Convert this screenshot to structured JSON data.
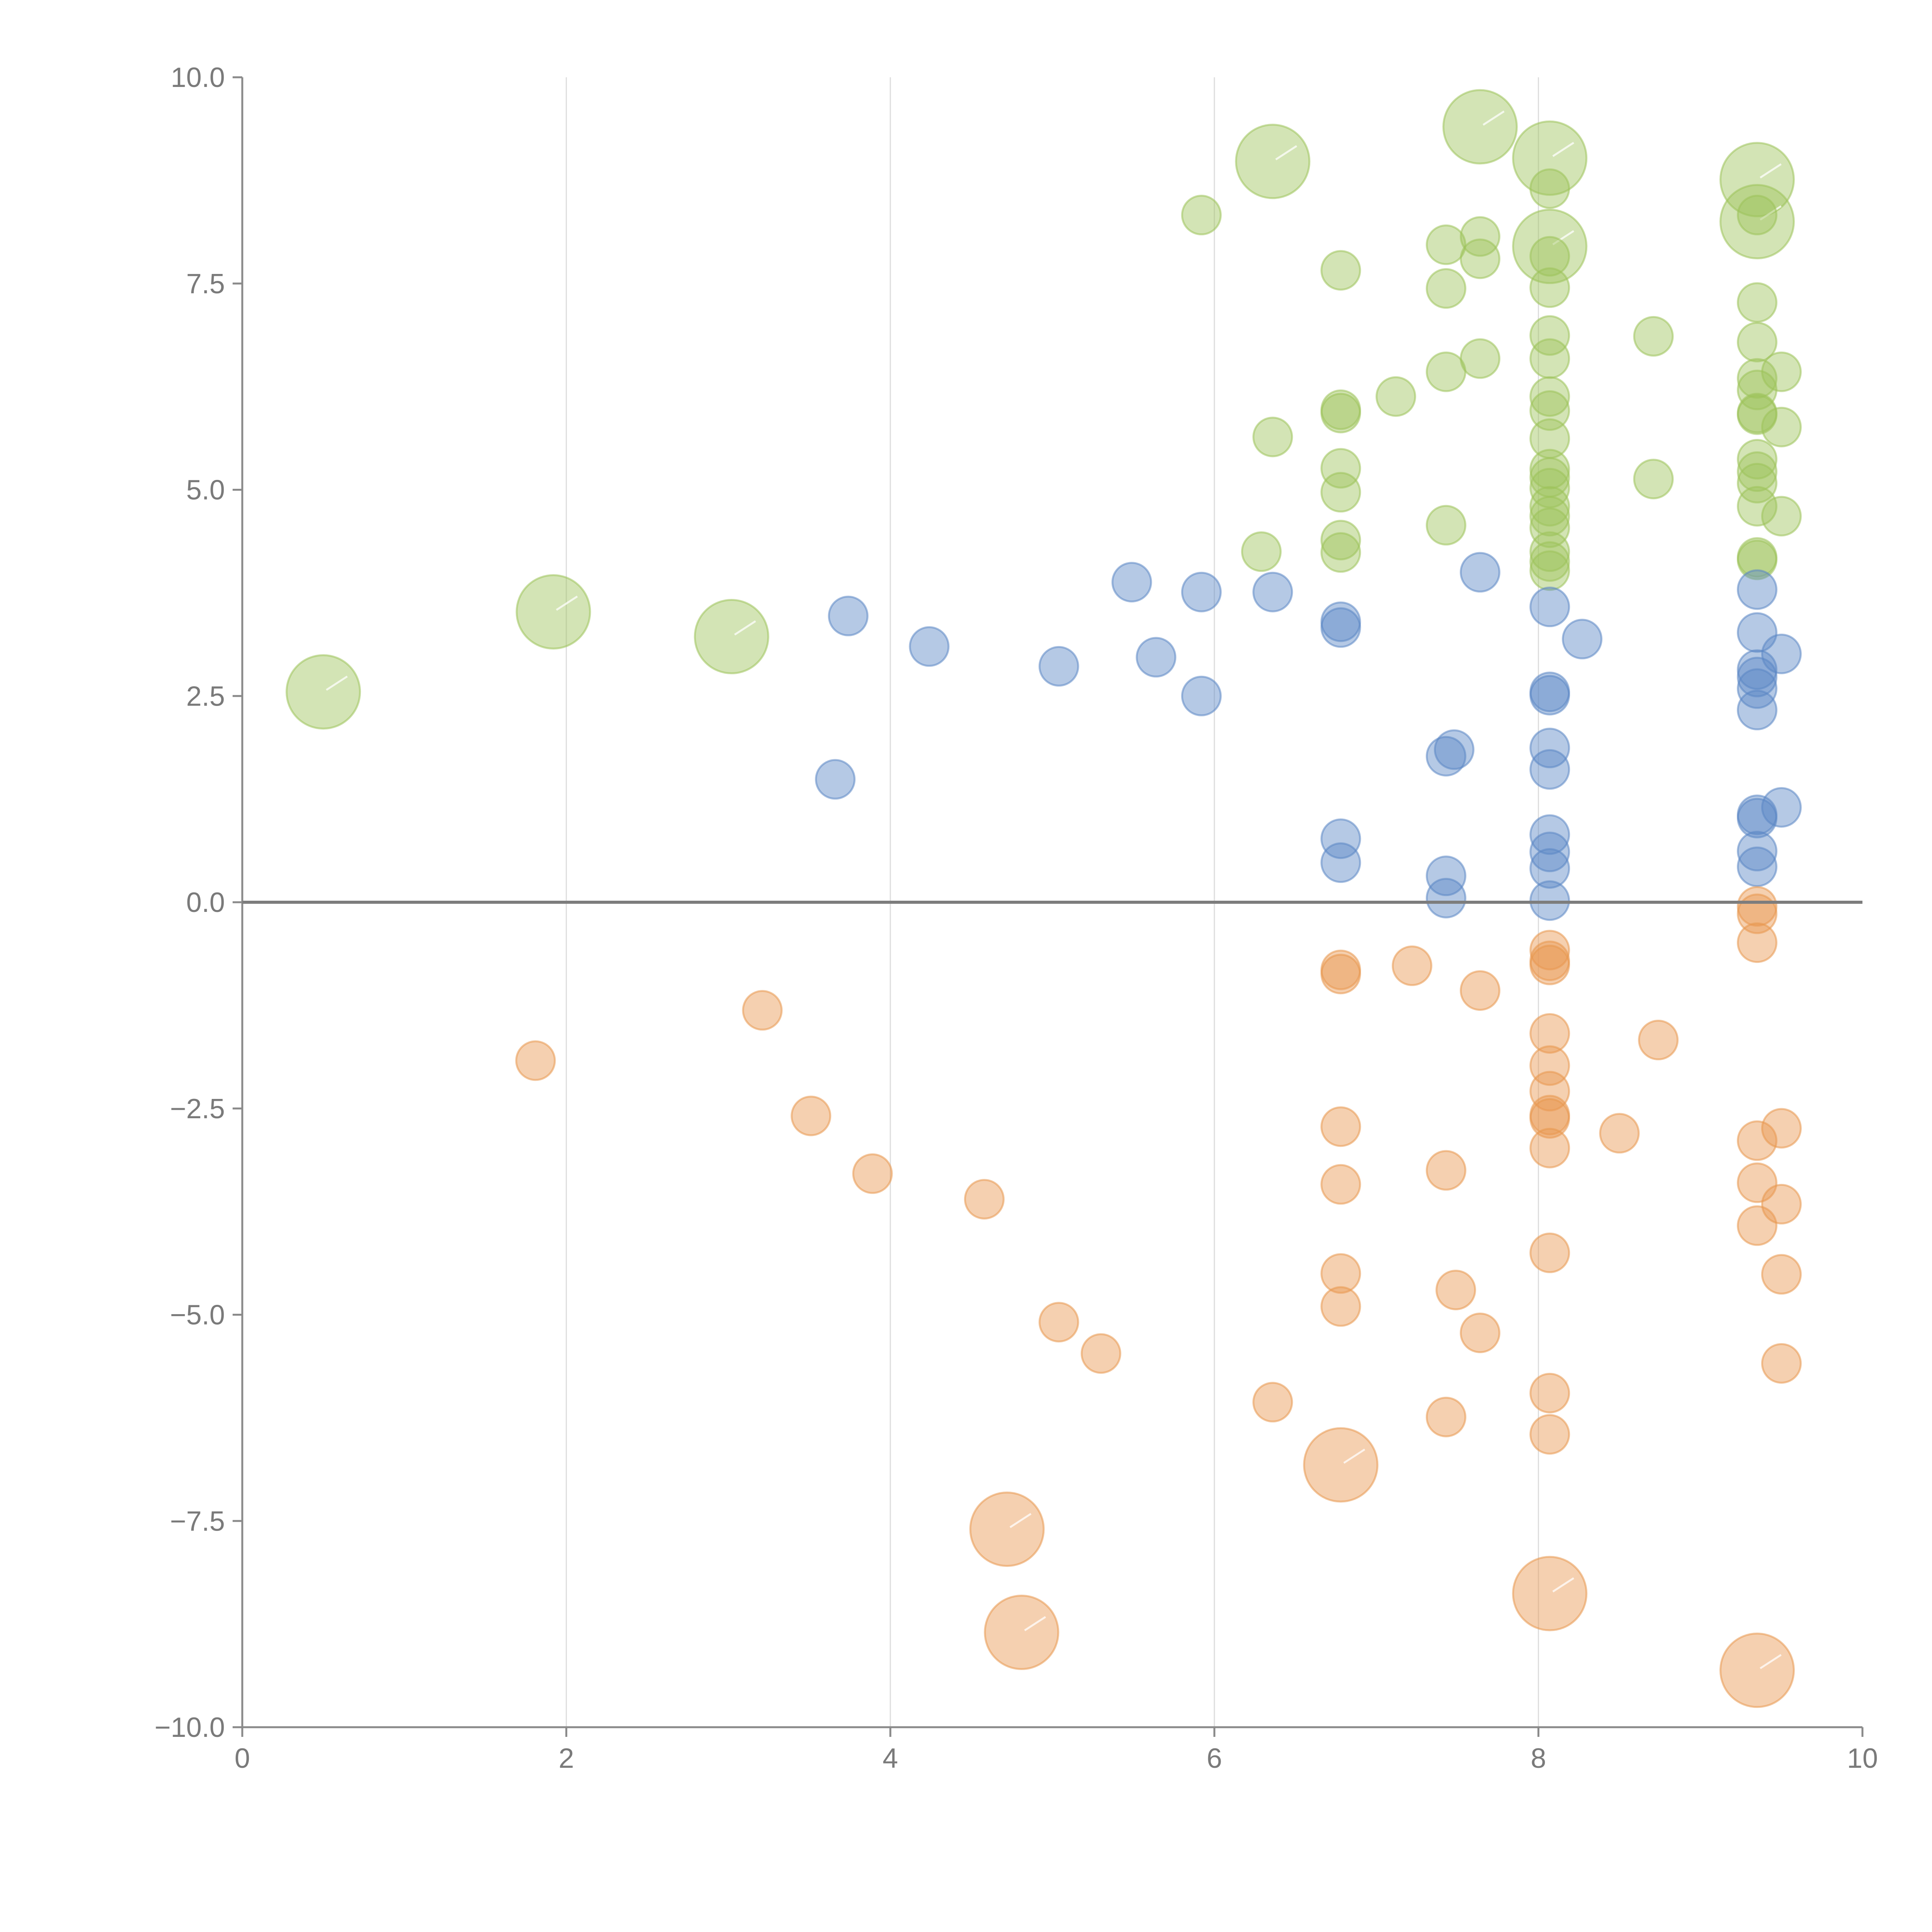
{
  "chart_data": {
    "type": "scatter",
    "title": "",
    "xlabel": "",
    "ylabel": "",
    "xlim": [
      0,
      10
    ],
    "ylim": [
      -10,
      10
    ],
    "grid": "vertical",
    "legend": "none",
    "x_ticks": [
      "0",
      "2",
      "4",
      "6",
      "8",
      "10"
    ],
    "y_ticks": [
      "10.0",
      "7.5",
      "5.0",
      "2.5",
      "0.0",
      "−2.5",
      "−5.0",
      "−7.5",
      "−10.0"
    ],
    "reference_line_y": 0,
    "series": [
      {
        "name": "green",
        "color": "#9dc35a",
        "points": [
          [
            0.5,
            2.55,
            "L"
          ],
          [
            1.92,
            3.52,
            "L"
          ],
          [
            3.02,
            3.22,
            "L"
          ],
          [
            6.36,
            8.98,
            "L"
          ],
          [
            7.64,
            9.4,
            "L"
          ],
          [
            8.07,
            9.02,
            "L"
          ],
          [
            8.07,
            7.95,
            "L"
          ],
          [
            9.35,
            8.76,
            "L"
          ],
          [
            9.35,
            8.25,
            "L"
          ],
          [
            5.92,
            8.33
          ],
          [
            6.78,
            7.66
          ],
          [
            7.43,
            7.97
          ],
          [
            7.43,
            7.44
          ],
          [
            7.64,
            8.07
          ],
          [
            7.64,
            7.8
          ],
          [
            8.07,
            8.65
          ],
          [
            8.07,
            7.83
          ],
          [
            8.07,
            7.45
          ],
          [
            9.35,
            8.33
          ],
          [
            9.35,
            7.27
          ],
          [
            6.78,
            5.97
          ],
          [
            6.78,
            5.93
          ],
          [
            7.12,
            6.13
          ],
          [
            7.43,
            6.43
          ],
          [
            7.64,
            6.59
          ],
          [
            8.71,
            6.86
          ],
          [
            8.07,
            6.87
          ],
          [
            8.07,
            6.59
          ],
          [
            8.07,
            6.13
          ],
          [
            8.07,
            5.96
          ],
          [
            8.07,
            5.62
          ],
          [
            9.35,
            6.79
          ],
          [
            9.35,
            6.35
          ],
          [
            9.35,
            6.21
          ],
          [
            9.35,
            5.93
          ],
          [
            9.35,
            5.91
          ],
          [
            9.5,
            6.43
          ],
          [
            9.5,
            5.76
          ],
          [
            6.36,
            5.64
          ],
          [
            6.78,
            5.26
          ],
          [
            6.78,
            4.97
          ],
          [
            6.78,
            4.39
          ],
          [
            6.78,
            4.24
          ],
          [
            6.29,
            4.25
          ],
          [
            7.43,
            4.57
          ],
          [
            8.71,
            5.13
          ],
          [
            8.07,
            5.25
          ],
          [
            8.07,
            5.15
          ],
          [
            8.07,
            5.02
          ],
          [
            8.07,
            4.8
          ],
          [
            8.07,
            4.68
          ],
          [
            8.07,
            4.54
          ],
          [
            8.07,
            4.25
          ],
          [
            8.07,
            4.13
          ],
          [
            8.07,
            4.02
          ],
          [
            9.35,
            5.37
          ],
          [
            9.35,
            5.22
          ],
          [
            9.35,
            5.08
          ],
          [
            9.35,
            4.8
          ],
          [
            9.35,
            4.18
          ],
          [
            9.35,
            4.15
          ],
          [
            9.5,
            4.68
          ]
        ]
      },
      {
        "name": "blue",
        "color": "#5b87c5",
        "points": [
          [
            3.74,
            3.47
          ],
          [
            4.24,
            3.1
          ],
          [
            3.66,
            1.49
          ],
          [
            5.04,
            2.86
          ],
          [
            5.49,
            3.88
          ],
          [
            5.64,
            2.97
          ],
          [
            5.92,
            3.76
          ],
          [
            5.92,
            2.5
          ],
          [
            6.36,
            3.76
          ],
          [
            6.78,
            3.4
          ],
          [
            6.78,
            3.33
          ],
          [
            7.64,
            4.0
          ],
          [
            8.07,
            3.58
          ],
          [
            8.27,
            3.19
          ],
          [
            8.07,
            2.55
          ],
          [
            8.07,
            2.51
          ],
          [
            9.35,
            3.79
          ],
          [
            9.35,
            3.27
          ],
          [
            9.35,
            2.82
          ],
          [
            9.35,
            2.73
          ],
          [
            9.35,
            2.59
          ],
          [
            9.35,
            2.33
          ],
          [
            9.5,
            3.01
          ],
          [
            7.43,
            1.77
          ],
          [
            7.48,
            1.85
          ],
          [
            8.07,
            1.87
          ],
          [
            8.07,
            1.61
          ],
          [
            9.35,
            1.06
          ],
          [
            9.35,
            1.02
          ],
          [
            9.5,
            1.15
          ],
          [
            6.78,
            0.77
          ],
          [
            6.78,
            0.48
          ],
          [
            7.43,
            0.32
          ],
          [
            7.43,
            0.05
          ],
          [
            8.07,
            0.82
          ],
          [
            8.07,
            0.61
          ],
          [
            8.07,
            0.41
          ],
          [
            8.07,
            0.02
          ],
          [
            9.35,
            0.62
          ],
          [
            9.35,
            0.43
          ]
        ]
      },
      {
        "name": "orange",
        "color": "#e8974f",
        "points": [
          [
            1.81,
            -1.92
          ],
          [
            3.21,
            -1.31
          ],
          [
            3.51,
            -2.59
          ],
          [
            3.89,
            -3.29
          ],
          [
            4.58,
            -3.6
          ],
          [
            5.04,
            -5.09
          ],
          [
            5.3,
            -5.47
          ],
          [
            6.36,
            -6.06
          ],
          [
            6.78,
            -0.82
          ],
          [
            6.78,
            -0.87
          ],
          [
            7.22,
            -0.77
          ],
          [
            7.64,
            -1.07
          ],
          [
            8.74,
            -1.67
          ],
          [
            8.07,
            -0.58
          ],
          [
            8.07,
            -0.71
          ],
          [
            8.07,
            -0.76
          ],
          [
            9.35,
            -0.05
          ],
          [
            9.35,
            -0.14
          ],
          [
            9.35,
            -0.49
          ],
          [
            8.07,
            -1.59
          ],
          [
            8.07,
            -1.98
          ],
          [
            8.07,
            -2.29
          ],
          [
            8.07,
            -2.58
          ],
          [
            8.07,
            -2.62
          ],
          [
            8.07,
            -2.98
          ],
          [
            8.5,
            -2.8
          ],
          [
            6.78,
            -2.72
          ],
          [
            6.78,
            -3.42
          ],
          [
            7.43,
            -3.25
          ],
          [
            9.35,
            -2.89
          ],
          [
            9.5,
            -2.74
          ],
          [
            9.35,
            -3.4
          ],
          [
            9.35,
            -3.92
          ],
          [
            9.5,
            -3.66
          ],
          [
            8.07,
            -4.25
          ],
          [
            6.78,
            -4.5
          ],
          [
            6.78,
            -4.9
          ],
          [
            7.49,
            -4.7
          ],
          [
            7.64,
            -5.22
          ],
          [
            9.5,
            -4.51
          ],
          [
            9.5,
            -5.59
          ],
          [
            7.43,
            -6.24
          ],
          [
            8.07,
            -5.95
          ],
          [
            8.07,
            -6.45
          ],
          [
            6.78,
            -6.82,
            "L"
          ],
          [
            4.72,
            -7.6,
            "L"
          ],
          [
            4.81,
            -8.85,
            "L"
          ],
          [
            8.07,
            -8.38,
            "L"
          ],
          [
            9.35,
            -9.31,
            "L"
          ]
        ]
      }
    ]
  }
}
